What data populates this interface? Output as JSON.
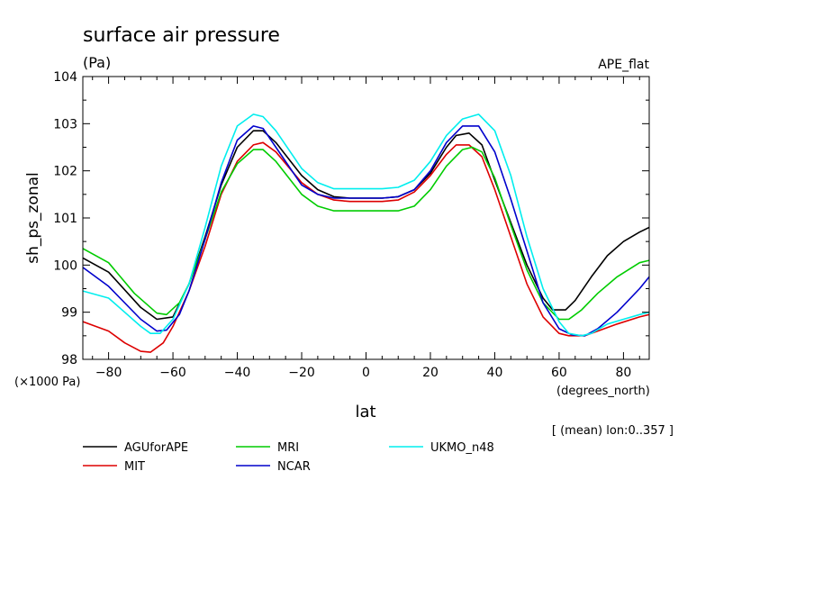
{
  "chart_data": {
    "type": "line",
    "title": "surface air pressure",
    "units": "(Pa)",
    "top_right_label": "APE_flat",
    "ylabel": "sh_ps_zonal",
    "yunit_label": "(×1000 Pa)",
    "xlabel": "lat",
    "xunit_label": "(degrees_north)",
    "note": "[ (mean) lon:0..357 ]",
    "xlim": [
      -88,
      88
    ],
    "ylim": [
      98,
      104
    ],
    "xticks": [
      -80,
      -60,
      -40,
      -20,
      0,
      20,
      40,
      60,
      80
    ],
    "yticks": [
      98,
      99,
      100,
      101,
      102,
      103,
      104
    ],
    "grid": false,
    "legend_position": "bottom",
    "series": [
      {
        "name": "AGUforAPE",
        "color": "#000000",
        "x": [
          -88,
          -80,
          -70,
          -65,
          -60,
          -55,
          -50,
          -45,
          -40,
          -35,
          -32,
          -28,
          -20,
          -15,
          -10,
          -5,
          0,
          5,
          10,
          15,
          20,
          25,
          28,
          32,
          36,
          40,
          45,
          50,
          55,
          58,
          62,
          65,
          70,
          75,
          80,
          85,
          88
        ],
        "y": [
          100.15,
          99.85,
          99.1,
          98.85,
          98.9,
          99.6,
          100.6,
          101.7,
          102.5,
          102.85,
          102.85,
          102.6,
          101.9,
          101.6,
          101.45,
          101.42,
          101.42,
          101.42,
          101.45,
          101.6,
          101.95,
          102.5,
          102.75,
          102.8,
          102.55,
          101.8,
          100.9,
          100.0,
          99.3,
          99.05,
          99.05,
          99.25,
          99.75,
          100.2,
          100.5,
          100.7,
          100.8
        ]
      },
      {
        "name": "MIT",
        "color": "#dd0000",
        "x": [
          -88,
          -80,
          -75,
          -70,
          -67,
          -63,
          -60,
          -55,
          -50,
          -45,
          -40,
          -35,
          -32,
          -28,
          -20,
          -15,
          -10,
          -5,
          0,
          5,
          10,
          15,
          20,
          25,
          28,
          32,
          36,
          40,
          45,
          50,
          55,
          60,
          63,
          68,
          72,
          78,
          85,
          88
        ],
        "y": [
          98.8,
          98.6,
          98.35,
          98.17,
          98.15,
          98.35,
          98.7,
          99.45,
          100.4,
          101.5,
          102.2,
          102.55,
          102.6,
          102.4,
          101.75,
          101.5,
          101.38,
          101.35,
          101.35,
          101.35,
          101.38,
          101.55,
          101.9,
          102.35,
          102.55,
          102.55,
          102.3,
          101.6,
          100.6,
          99.6,
          98.9,
          98.55,
          98.5,
          98.5,
          98.6,
          98.75,
          98.9,
          98.95
        ]
      },
      {
        "name": "MRI",
        "color": "#00cc00",
        "x": [
          -88,
          -80,
          -72,
          -65,
          -62,
          -58,
          -55,
          -50,
          -45,
          -40,
          -35,
          -32,
          -28,
          -20,
          -15,
          -10,
          -5,
          0,
          5,
          10,
          15,
          20,
          25,
          30,
          33,
          36,
          40,
          45,
          50,
          55,
          60,
          63,
          67,
          72,
          78,
          85,
          88
        ],
        "y": [
          100.35,
          100.05,
          99.4,
          98.98,
          98.95,
          99.2,
          99.6,
          100.55,
          101.55,
          102.15,
          102.45,
          102.45,
          102.2,
          101.5,
          101.25,
          101.15,
          101.15,
          101.15,
          101.15,
          101.15,
          101.25,
          101.6,
          102.1,
          102.45,
          102.5,
          102.4,
          101.85,
          100.85,
          99.9,
          99.2,
          98.85,
          98.85,
          99.05,
          99.4,
          99.75,
          100.05,
          100.1
        ]
      },
      {
        "name": "NCAR",
        "color": "#0000cc",
        "x": [
          -88,
          -80,
          -70,
          -65,
          -62,
          -58,
          -55,
          -50,
          -45,
          -40,
          -35,
          -32,
          -28,
          -20,
          -15,
          -10,
          -5,
          0,
          5,
          10,
          15,
          20,
          25,
          30,
          35,
          40,
          45,
          50,
          55,
          60,
          64,
          68,
          72,
          78,
          85,
          88
        ],
        "y": [
          99.95,
          99.55,
          98.85,
          98.6,
          98.62,
          98.95,
          99.45,
          100.55,
          101.75,
          102.65,
          102.95,
          102.9,
          102.5,
          101.7,
          101.5,
          101.42,
          101.42,
          101.42,
          101.42,
          101.45,
          101.6,
          102.0,
          102.6,
          102.95,
          102.95,
          102.4,
          101.4,
          100.3,
          99.2,
          98.65,
          98.52,
          98.5,
          98.65,
          99.0,
          99.5,
          99.75
        ]
      },
      {
        "name": "UKMO_n48",
        "color": "#00eeee",
        "x": [
          -88,
          -80,
          -75,
          -70,
          -67,
          -64,
          -60,
          -55,
          -50,
          -45,
          -40,
          -35,
          -32,
          -28,
          -20,
          -15,
          -10,
          -5,
          0,
          5,
          10,
          15,
          20,
          25,
          30,
          35,
          40,
          45,
          50,
          55,
          60,
          63,
          67,
          70,
          75,
          80,
          85,
          88
        ],
        "y": [
          99.45,
          99.3,
          99.0,
          98.7,
          98.55,
          98.55,
          98.85,
          99.6,
          100.8,
          102.1,
          102.95,
          103.2,
          103.15,
          102.85,
          102.05,
          101.75,
          101.62,
          101.62,
          101.62,
          101.62,
          101.65,
          101.8,
          102.2,
          102.75,
          103.1,
          103.2,
          102.85,
          101.9,
          100.6,
          99.5,
          98.8,
          98.55,
          98.5,
          98.55,
          98.75,
          98.85,
          98.95,
          99.0
        ]
      }
    ]
  }
}
